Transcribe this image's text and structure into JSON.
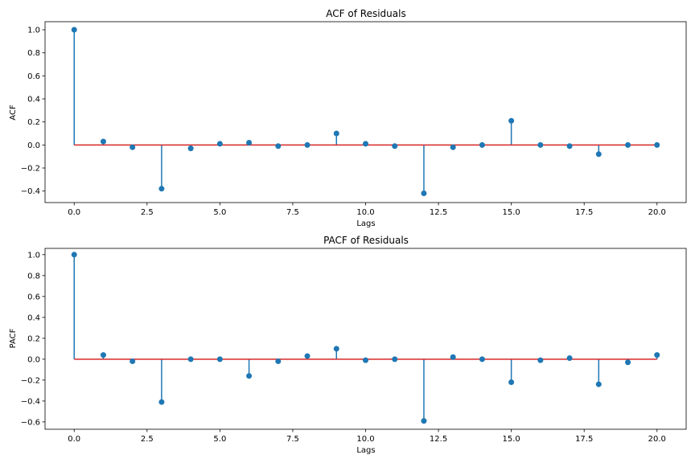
{
  "chart_data": [
    {
      "type": "stem",
      "title": "ACF of Residuals",
      "xlabel": "Lags",
      "ylabel": "ACF",
      "xlim": [
        -1,
        21
      ],
      "ylim": [
        -0.5,
        1.07
      ],
      "xticks": [
        0.0,
        2.5,
        5.0,
        7.5,
        10.0,
        12.5,
        15.0,
        17.5,
        20.0
      ],
      "xtick_labels": [
        "0.0",
        "2.5",
        "5.0",
        "7.5",
        "10.0",
        "12.5",
        "15.0",
        "17.5",
        "20.0"
      ],
      "yticks": [
        -0.4,
        -0.2,
        0.0,
        0.2,
        0.4,
        0.6,
        0.8,
        1.0
      ],
      "ytick_labels": [
        "−0.4",
        "−0.2",
        "0.0",
        "0.2",
        "0.4",
        "0.6",
        "0.8",
        "1.0"
      ],
      "x": [
        0,
        1,
        2,
        3,
        4,
        5,
        6,
        7,
        8,
        9,
        10,
        11,
        12,
        13,
        14,
        15,
        16,
        17,
        18,
        19,
        20
      ],
      "values": [
        1.0,
        0.03,
        -0.02,
        -0.38,
        -0.03,
        0.01,
        0.02,
        -0.01,
        0.0,
        0.1,
        0.01,
        -0.01,
        -0.42,
        -0.02,
        0.0,
        0.21,
        0.0,
        -0.01,
        -0.08,
        0.0,
        0.0
      ],
      "colors": {
        "stem": "#1f77b4",
        "marker": "#1f77b4",
        "baseline": "#d62728"
      }
    },
    {
      "type": "stem",
      "title": "PACF of Residuals",
      "xlabel": "Lags",
      "ylabel": "PACF",
      "xlim": [
        -1,
        21
      ],
      "ylim": [
        -0.67,
        1.06
      ],
      "xticks": [
        0.0,
        2.5,
        5.0,
        7.5,
        10.0,
        12.5,
        15.0,
        17.5,
        20.0
      ],
      "xtick_labels": [
        "0.0",
        "2.5",
        "5.0",
        "7.5",
        "10.0",
        "12.5",
        "15.0",
        "17.5",
        "20.0"
      ],
      "yticks": [
        -0.6,
        -0.4,
        -0.2,
        0.0,
        0.2,
        0.4,
        0.6,
        0.8,
        1.0
      ],
      "ytick_labels": [
        "−0.6",
        "−0.4",
        "−0.2",
        "0.0",
        "0.2",
        "0.4",
        "0.6",
        "0.8",
        "1.0"
      ],
      "x": [
        0,
        1,
        2,
        3,
        4,
        5,
        6,
        7,
        8,
        9,
        10,
        11,
        12,
        13,
        14,
        15,
        16,
        17,
        18,
        19,
        20
      ],
      "values": [
        1.0,
        0.04,
        -0.02,
        -0.41,
        0.0,
        0.0,
        -0.16,
        -0.02,
        0.03,
        0.1,
        -0.01,
        0.0,
        -0.59,
        0.02,
        0.0,
        -0.22,
        -0.01,
        0.01,
        -0.24,
        -0.03,
        0.04
      ],
      "colors": {
        "stem": "#1f77b4",
        "marker": "#1f77b4",
        "baseline": "#d62728"
      }
    }
  ]
}
